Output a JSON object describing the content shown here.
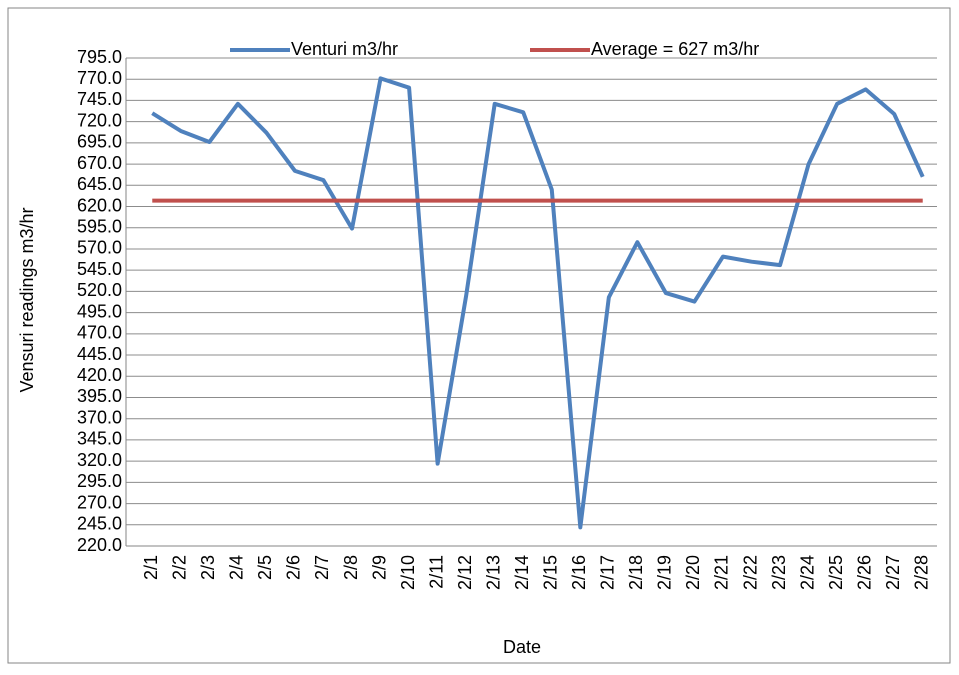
{
  "chart_data": {
    "type": "line",
    "x_label": "Date",
    "y_label": "Vensuri readings m3/hr",
    "categories": [
      "2/1",
      "2/2",
      "2/3",
      "2/4",
      "2/5",
      "2/6",
      "2/7",
      "2/8",
      "2/9",
      "2/10",
      "2/11",
      "2/12",
      "2/13",
      "2/14",
      "2/15",
      "2/16",
      "2/17",
      "2/18",
      "2/19",
      "2/20",
      "2/21",
      "2/22",
      "2/23",
      "2/24",
      "2/25",
      "2/26",
      "2/27",
      "2/28"
    ],
    "series": [
      {
        "name": "Venturi m3/hr",
        "color": "#4f81bd",
        "values": [
          730,
          709,
          696,
          741,
          707,
          662,
          651,
          594,
          771,
          760,
          317,
          515,
          741,
          731,
          640,
          242,
          513,
          578,
          518,
          508,
          561,
          555,
          551,
          670,
          741,
          758,
          729,
          655
        ]
      },
      {
        "name": "Average = 627  m3/hr",
        "color": "#c0504d",
        "values": [
          627,
          627,
          627,
          627,
          627,
          627,
          627,
          627,
          627,
          627,
          627,
          627,
          627,
          627,
          627,
          627,
          627,
          627,
          627,
          627,
          627,
          627,
          627,
          627,
          627,
          627,
          627,
          627
        ]
      }
    ],
    "ylim": [
      220,
      795
    ],
    "yticks": [
      {
        "value": 220,
        "label": "220.0"
      },
      {
        "value": 245,
        "label": "245.0"
      },
      {
        "value": 270,
        "label": "270.0"
      },
      {
        "value": 295,
        "label": "295.0"
      },
      {
        "value": 320,
        "label": "320.0"
      },
      {
        "value": 345,
        "label": "345.0"
      },
      {
        "value": 370,
        "label": "370.0"
      },
      {
        "value": 395,
        "label": "395.0"
      },
      {
        "value": 420,
        "label": "420.0"
      },
      {
        "value": 445,
        "label": "445.0"
      },
      {
        "value": 470,
        "label": "470.0"
      },
      {
        "value": 495,
        "label": "495.0"
      },
      {
        "value": 520,
        "label": "520.0"
      },
      {
        "value": 545,
        "label": "545.0"
      },
      {
        "value": 570,
        "label": "570.0"
      },
      {
        "value": 595,
        "label": "595.0"
      },
      {
        "value": 620,
        "label": "620.0"
      },
      {
        "value": 645,
        "label": "645.0"
      },
      {
        "value": 670,
        "label": "670.0"
      },
      {
        "value": 695,
        "label": "695.0"
      },
      {
        "value": 720,
        "label": "720.0"
      },
      {
        "value": 745,
        "label": "745.0"
      },
      {
        "value": 770,
        "label": "770.0"
      },
      {
        "value": 795,
        "label": "795.0"
      }
    ],
    "grid": true,
    "legend": "top"
  }
}
